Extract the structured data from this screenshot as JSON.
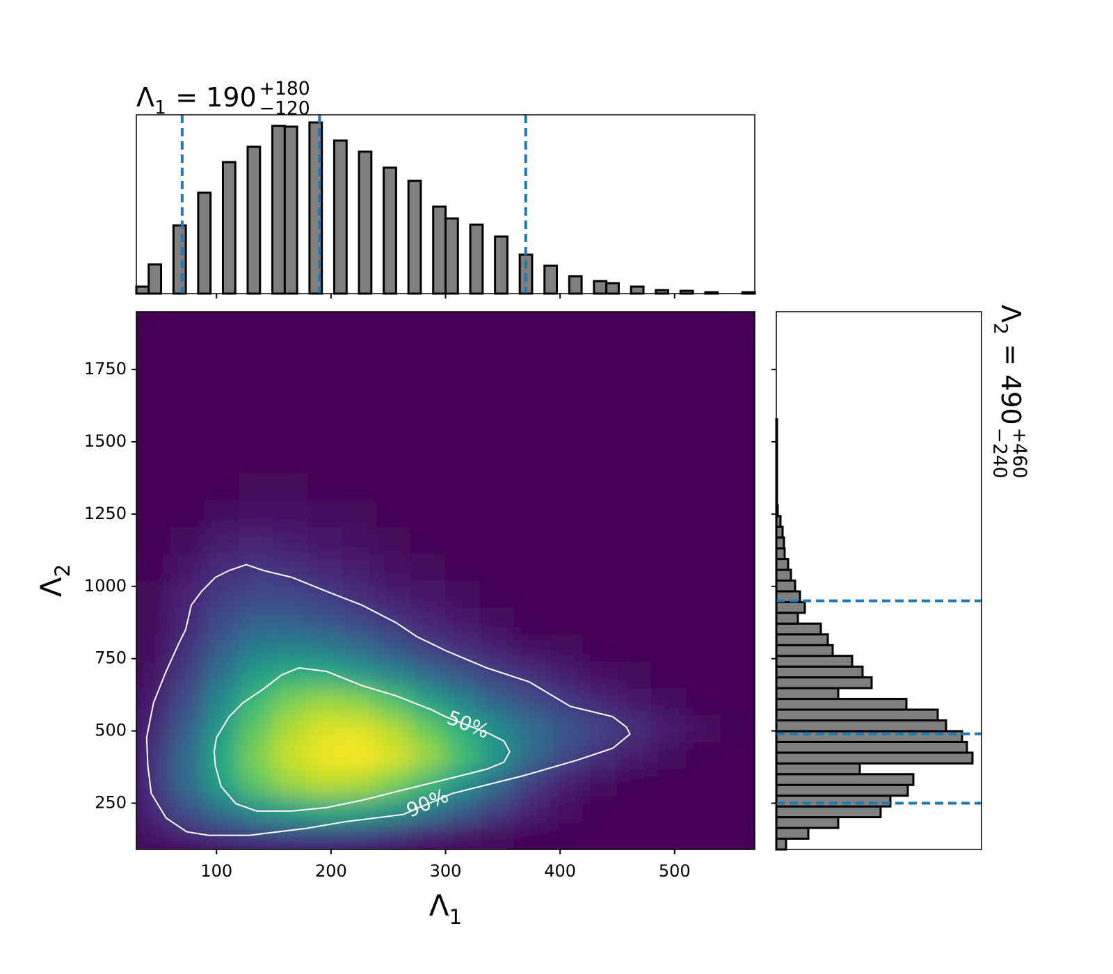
{
  "chart_data": [
    {
      "type": "heatmap",
      "xlabel": {
        "symbol": "Λ",
        "index": "1"
      },
      "ylabel": {
        "symbol": "Λ",
        "index": "2"
      },
      "xlim": [
        30,
        570
      ],
      "ylim": [
        90,
        1950
      ],
      "xticks": [
        100,
        200,
        300,
        400,
        500
      ],
      "yticks": [
        250,
        500,
        750,
        1000,
        1250,
        1500,
        1750
      ],
      "colormap": "viridis",
      "zlim": [
        0,
        100
      ],
      "x_edges": [
        30,
        60,
        90,
        120,
        150,
        180,
        210,
        240,
        270,
        300,
        330,
        360,
        390,
        420,
        450,
        480,
        510,
        540,
        570
      ],
      "y_edges": [
        90,
        183,
        276,
        369,
        462,
        555,
        648,
        741,
        834,
        927,
        1020,
        1113,
        1206,
        1299,
        1392,
        1485,
        1578,
        1671,
        1764,
        1857,
        1950
      ],
      "z": [
        [
          5,
          10,
          15,
          20,
          22,
          22,
          20,
          15,
          10,
          6,
          3,
          1,
          0,
          0,
          0,
          0,
          0,
          0
        ],
        [
          12,
          25,
          38,
          50,
          58,
          62,
          60,
          52,
          42,
          30,
          18,
          9,
          4,
          1,
          0,
          0,
          0,
          0
        ],
        [
          15,
          35,
          58,
          75,
          85,
          90,
          88,
          80,
          68,
          52,
          35,
          18,
          8,
          3,
          1,
          0,
          0,
          0
        ],
        [
          15,
          35,
          60,
          80,
          92,
          98,
          100,
          95,
          85,
          70,
          52,
          35,
          22,
          13,
          7,
          3,
          1,
          0
        ],
        [
          12,
          30,
          55,
          75,
          88,
          95,
          95,
          88,
          76,
          62,
          48,
          36,
          27,
          20,
          14,
          8,
          4,
          1
        ],
        [
          8,
          24,
          48,
          68,
          80,
          85,
          82,
          72,
          58,
          44,
          32,
          24,
          17,
          11,
          6,
          3,
          1,
          0
        ],
        [
          5,
          18,
          38,
          55,
          63,
          62,
          55,
          45,
          35,
          26,
          19,
          13,
          8,
          4,
          2,
          1,
          0,
          0
        ],
        [
          3,
          14,
          30,
          42,
          44,
          41,
          35,
          27,
          19,
          13,
          8,
          4,
          2,
          1,
          0,
          0,
          0,
          0
        ],
        [
          2,
          11,
          23,
          30,
          30,
          27,
          21,
          15,
          10,
          6,
          3,
          1,
          0,
          0,
          0,
          0,
          0,
          0
        ],
        [
          2,
          9,
          17,
          22,
          21,
          17,
          12,
          8,
          5,
          3,
          1,
          0,
          0,
          0,
          0,
          0,
          0,
          0
        ],
        [
          1,
          6,
          12,
          15,
          13,
          10,
          7,
          4,
          2,
          1,
          0,
          0,
          0,
          0,
          0,
          0,
          0,
          0
        ],
        [
          0,
          3,
          7,
          9,
          8,
          6,
          4,
          2,
          1,
          0,
          0,
          0,
          0,
          0,
          0,
          0,
          0,
          0
        ],
        [
          0,
          1,
          3,
          4,
          4,
          3,
          2,
          1,
          0,
          0,
          0,
          0,
          0,
          0,
          0,
          0,
          0,
          0
        ],
        [
          0,
          0,
          1,
          2,
          2,
          1,
          1,
          0,
          0,
          0,
          0,
          0,
          0,
          0,
          0,
          0,
          0,
          0
        ],
        [
          0,
          0,
          0,
          0,
          0,
          0,
          0,
          0,
          0,
          0,
          0,
          0,
          0,
          0,
          0,
          0,
          0,
          0
        ],
        [
          0,
          0,
          0,
          0,
          0,
          0,
          0,
          0,
          0,
          0,
          0,
          0,
          0,
          0,
          0,
          0,
          0,
          0
        ],
        [
          0,
          0,
          0,
          0,
          0,
          0,
          0,
          0,
          0,
          0,
          0,
          0,
          0,
          0,
          0,
          0,
          0,
          0
        ],
        [
          0,
          0,
          0,
          0,
          0,
          0,
          0,
          0,
          0,
          0,
          0,
          0,
          0,
          0,
          0,
          0,
          0,
          0
        ],
        [
          0,
          0,
          0,
          0,
          0,
          0,
          0,
          0,
          0,
          0,
          0,
          0,
          0,
          0,
          0,
          0,
          0,
          0
        ],
        [
          0,
          0,
          0,
          0,
          0,
          0,
          0,
          0,
          0,
          0,
          0,
          0,
          0,
          0,
          0,
          0,
          0,
          0
        ]
      ],
      "contour_color": "#ffffff",
      "contours": [
        {
          "label": "50%",
          "x": [
            99,
            98,
            100,
            111,
            123,
            141,
            157,
            172,
            196,
            227,
            257,
            288,
            300,
            339,
            351,
            356,
            351,
            336,
            300,
            263,
            227,
            196,
            166,
            135,
            117,
            104,
            99
          ],
          "y": [
            380,
            428,
            477,
            549,
            597,
            645,
            694,
            718,
            706,
            657,
            621,
            573,
            549,
            489,
            465,
            428,
            392,
            368,
            332,
            296,
            260,
            235,
            223,
            223,
            248,
            308,
            380
          ]
        },
        {
          "label": "90%",
          "x": [
            40,
            39,
            45,
            56,
            67,
            73,
            78,
            87,
            99,
            111,
            126,
            141,
            166,
            196,
            227,
            257,
            275,
            300,
            336,
            373,
            409,
            446,
            458,
            461,
            446,
            415,
            367,
            306,
            263,
            214,
            178,
            129,
            93,
            74,
            56,
            43,
            40
          ],
          "y": [
            380,
            477,
            597,
            706,
            802,
            850,
            935,
            983,
            1031,
            1055,
            1075,
            1055,
            1031,
            983,
            935,
            874,
            826,
            778,
            718,
            670,
            585,
            549,
            513,
            489,
            440,
            399,
            344,
            284,
            211,
            187,
            163,
            139,
            139,
            151,
            199,
            284,
            380
          ]
        }
      ]
    },
    {
      "type": "histogram",
      "title": {
        "symbol": "Λ",
        "index": "1",
        "equals": "= 190",
        "upper": "+180",
        "lower": "−120"
      },
      "xlim": [
        30,
        570
      ],
      "ylim": [
        0,
        257
      ],
      "xticks": [
        100,
        200,
        300,
        400,
        500
      ],
      "xticklabels": false,
      "color": "#808080",
      "edgecolor": "#000000",
      "bins": [
        30,
        40.8,
        51.6,
        62.4,
        73.2,
        84,
        94.8,
        105.6,
        116.4,
        127.2,
        138,
        148.8,
        159.6,
        170.4,
        181.2,
        192,
        202.8,
        213.6,
        224.4,
        235.2,
        246,
        256.8,
        267.6,
        278.4,
        289.2,
        300,
        310.8,
        321.6,
        332.4,
        343.2,
        354,
        364.8,
        375.6,
        386.4,
        397.2,
        408,
        418.8,
        429.6,
        440.4,
        451.2,
        462,
        472.8,
        483.6,
        494.4,
        505.2,
        516,
        526.8,
        537.6,
        548.4,
        559.2,
        570
      ],
      "counts": [
        10,
        42,
        0,
        98,
        0,
        145,
        0,
        189,
        0,
        211,
        0,
        241,
        240,
        0,
        246,
        0,
        220,
        0,
        204,
        0,
        181,
        0,
        162,
        0,
        125,
        108,
        0,
        99,
        0,
        82,
        0,
        56,
        0,
        40,
        0,
        25,
        0,
        18,
        15,
        0,
        10,
        0,
        5,
        0,
        4,
        0,
        2,
        0,
        0,
        2
      ],
      "quantiles": [
        70,
        190,
        370
      ],
      "quantile_color": "#1f77b4"
    },
    {
      "type": "histogram",
      "orientation": "horizontal",
      "title": {
        "symbol": "Λ",
        "index": "2",
        "equals": "= 490",
        "upper": "+460",
        "lower": "−240"
      },
      "xlim": [
        0,
        295
      ],
      "ylim": [
        90,
        1950
      ],
      "yticks": [
        250,
        500,
        750,
        1000,
        1250,
        1500,
        1750
      ],
      "yticklabels": false,
      "color": "#808080",
      "edgecolor": "#000000",
      "bins": [
        90,
        127.2,
        164.4,
        201.6,
        238.8,
        276,
        313.2,
        350.4,
        387.6,
        424.8,
        462,
        499.2,
        536.4,
        573.6,
        610.8,
        648,
        685.2,
        722.4,
        759.6,
        796.8,
        834,
        871.2,
        908.4,
        945.6,
        982.8,
        1020,
        1057.2,
        1094.4,
        1131.6,
        1168.8,
        1206,
        1243.2,
        1280.4,
        1317.6,
        1354.8,
        1392,
        1429.2,
        1466.4,
        1503.6,
        1540.8,
        1578,
        1615.2,
        1652.4,
        1689.6,
        1726.8,
        1764,
        1801.2,
        1838.4,
        1875.6,
        1912.8,
        1950
      ],
      "counts": [
        14,
        46,
        89,
        150,
        164,
        189,
        197,
        120,
        282,
        274,
        267,
        244,
        232,
        187,
        89,
        137,
        124,
        109,
        81,
        74,
        64,
        31,
        41,
        34,
        27,
        21,
        17,
        12,
        11,
        9,
        6,
        2,
        1,
        1,
        1,
        1,
        1,
        1,
        1,
        1,
        0,
        0,
        0,
        0,
        0,
        0,
        0,
        0,
        0,
        0
      ],
      "quantiles": [
        250,
        490,
        950
      ],
      "quantile_color": "#1f77b4"
    }
  ]
}
